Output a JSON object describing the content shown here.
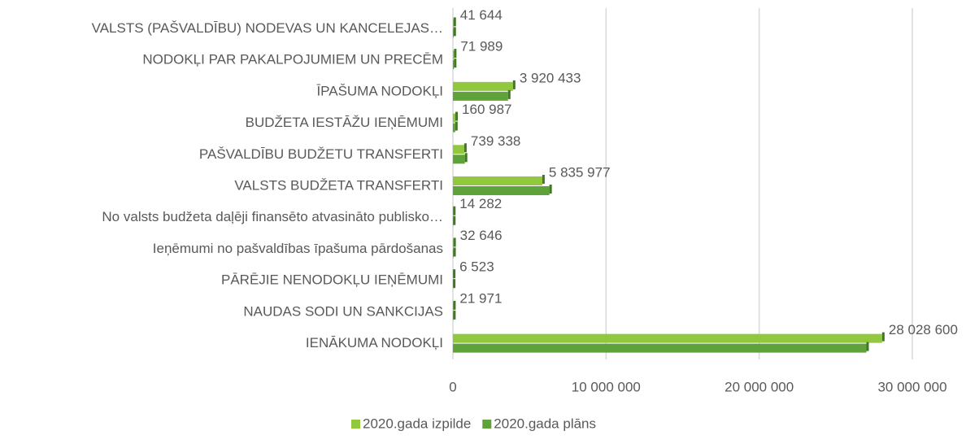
{
  "chart_data": {
    "type": "hbar",
    "categories": [
      "VALSTS (PAŠVALDĪBU) NODEVAS UN KANCELEJAS…",
      "NODOKĻI PAR PAKALPOJUMIEM UN PRECĒM",
      "ĪPAŠUMA NODOKĻI",
      "BUDŽETA IESTĀŽU IEŅĒMUMI",
      "PAŠVALDĪBU BUDŽETU TRANSFERTI",
      "VALSTS BUDŽETA TRANSFERTI",
      "No valsts budžeta daļēji finansēto atvasināto publisko…",
      "Ieņēmumi no pašvaldības īpašuma pārdošanas",
      "PĀRĒJIE NENODOKĻU IEŅĒMUMI",
      "NAUDAS SODI UN SANKCIJAS",
      "IENĀKUMA NODOKĻI"
    ],
    "series": [
      {
        "name": "2020.gada izpilde",
        "color": "#92c83e",
        "values": [
          41644,
          71989,
          3920433,
          160987,
          739338,
          5835977,
          14282,
          32646,
          6523,
          21971,
          28028600
        ],
        "value_labels": [
          "41 644",
          "71 989",
          "3 920 433",
          "160 987",
          "739 338",
          "5 835 977",
          "14 282",
          "32 646",
          "6 523",
          "21 971",
          "28 028 600"
        ]
      },
      {
        "name": "2020.gada plāns",
        "color": "#5fa23a",
        "values": [
          40000,
          70000,
          3600000,
          150000,
          780000,
          6300000,
          14000,
          30000,
          6000,
          20000,
          27000000
        ]
      }
    ],
    "xlim": [
      0,
      30000000
    ],
    "xticks": [
      0,
      {
        "value": 10000000,
        "label": "10 000 000"
      },
      {
        "value": 20000000,
        "label": "20 000 000"
      },
      {
        "value": 30000000,
        "label": "30 000 000"
      }
    ],
    "grid": true,
    "legend": "bottom"
  }
}
